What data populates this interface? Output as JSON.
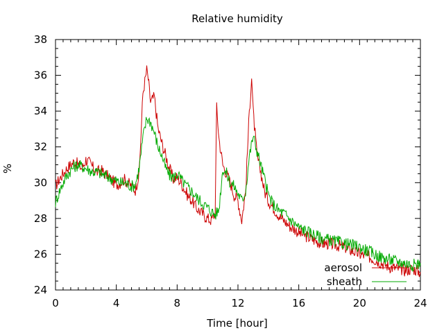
{
  "chart_data": {
    "type": "line",
    "title": "Relative humidity",
    "xlabel": "Time [hour]",
    "ylabel": "%",
    "xlim": [
      0,
      24
    ],
    "ylim": [
      24,
      38
    ],
    "xticks": [
      0,
      4,
      8,
      12,
      16,
      20,
      24
    ],
    "yticks": [
      24,
      26,
      28,
      30,
      32,
      34,
      36,
      38
    ],
    "grid": false,
    "legend_position": "bottom-right",
    "series": [
      {
        "name": "aerosol",
        "color": "#cc0000",
        "x": [
          0,
          0.25,
          0.5,
          0.75,
          1,
          1.25,
          1.5,
          1.75,
          2,
          2.25,
          2.5,
          2.75,
          3,
          3.25,
          3.5,
          3.75,
          4,
          4.25,
          4.5,
          4.75,
          5,
          5.25,
          5.5,
          5.75,
          6,
          6.1,
          6.25,
          6.5,
          6.75,
          7,
          7.25,
          7.5,
          7.75,
          8,
          8.25,
          8.5,
          8.75,
          9,
          9.25,
          9.5,
          9.75,
          10,
          10.25,
          10.5,
          10.6,
          10.75,
          11,
          11.25,
          11.5,
          11.75,
          12,
          12.25,
          12.5,
          12.75,
          12.9,
          13,
          13.25,
          13.5,
          13.75,
          14,
          14.25,
          14.5,
          14.75,
          15,
          15.25,
          15.5,
          15.75,
          16,
          16.5,
          17,
          17.5,
          18,
          18.5,
          19,
          19.5,
          20,
          20.5,
          21,
          21.5,
          22,
          22.5,
          23,
          23.5,
          24
        ],
        "y": [
          29.8,
          30.2,
          30.5,
          30.8,
          31.0,
          31.2,
          31.0,
          30.8,
          31.3,
          31.1,
          30.8,
          30.6,
          30.7,
          30.5,
          30.3,
          30.1,
          29.9,
          30.0,
          30.2,
          30.0,
          29.8,
          29.6,
          30.5,
          35.0,
          36.3,
          35.8,
          34.5,
          34.8,
          33.0,
          32.2,
          31.5,
          30.8,
          30.2,
          30.3,
          30.0,
          29.6,
          29.2,
          29.0,
          28.6,
          28.4,
          28.2,
          28.0,
          27.9,
          28.3,
          34.2,
          32.5,
          31.0,
          30.5,
          30.0,
          29.3,
          29.0,
          27.9,
          29.5,
          34.0,
          35.9,
          34.0,
          31.5,
          30.6,
          29.5,
          29.0,
          28.7,
          28.4,
          28.1,
          27.9,
          27.7,
          27.5,
          27.4,
          27.2,
          27.0,
          26.8,
          26.6,
          26.6,
          26.5,
          26.4,
          26.2,
          26.0,
          25.9,
          25.7,
          25.5,
          25.3,
          25.2,
          25.1,
          25.2,
          25.0
        ]
      },
      {
        "name": "sheath",
        "color": "#00aa00",
        "x": [
          0,
          0.25,
          0.5,
          0.75,
          1,
          1.25,
          1.5,
          1.75,
          2,
          2.25,
          2.5,
          2.75,
          3,
          3.25,
          3.5,
          3.75,
          4,
          4.25,
          4.5,
          4.75,
          5,
          5.25,
          5.5,
          5.75,
          6,
          6.25,
          6.5,
          6.75,
          7,
          7.25,
          7.5,
          7.75,
          8,
          8.25,
          8.5,
          8.75,
          9,
          9.25,
          9.5,
          9.75,
          10,
          10.25,
          10.5,
          10.75,
          11,
          11.25,
          11.5,
          11.75,
          12,
          12.25,
          12.5,
          12.75,
          13,
          13.25,
          13.5,
          13.75,
          14,
          14.25,
          14.5,
          14.75,
          15,
          15.25,
          15.5,
          15.75,
          16,
          16.5,
          17,
          17.5,
          18,
          18.5,
          19,
          19.5,
          20,
          20.5,
          21,
          21.5,
          22,
          22.5,
          23,
          23.5,
          24
        ],
        "y": [
          28.9,
          29.5,
          30.0,
          30.4,
          30.7,
          30.9,
          31.0,
          30.9,
          30.8,
          30.7,
          30.6,
          30.6,
          30.5,
          30.4,
          30.3,
          30.2,
          30.1,
          30.0,
          30.0,
          29.9,
          29.8,
          29.9,
          30.8,
          32.5,
          33.6,
          33.4,
          32.8,
          32.0,
          31.5,
          30.8,
          30.4,
          30.3,
          30.5,
          30.2,
          29.9,
          29.7,
          29.5,
          29.2,
          29.0,
          28.8,
          28.6,
          28.4,
          28.2,
          28.5,
          30.8,
          30.5,
          30.0,
          29.8,
          29.4,
          29.0,
          29.5,
          31.5,
          32.6,
          31.8,
          31.0,
          30.2,
          29.3,
          28.9,
          28.6,
          28.4,
          28.3,
          28.1,
          27.9,
          27.7,
          27.5,
          27.3,
          27.1,
          26.9,
          26.8,
          26.7,
          26.6,
          26.5,
          26.4,
          26.2,
          26.0,
          25.8,
          25.7,
          25.6,
          25.5,
          25.4,
          25.5
        ]
      }
    ]
  }
}
